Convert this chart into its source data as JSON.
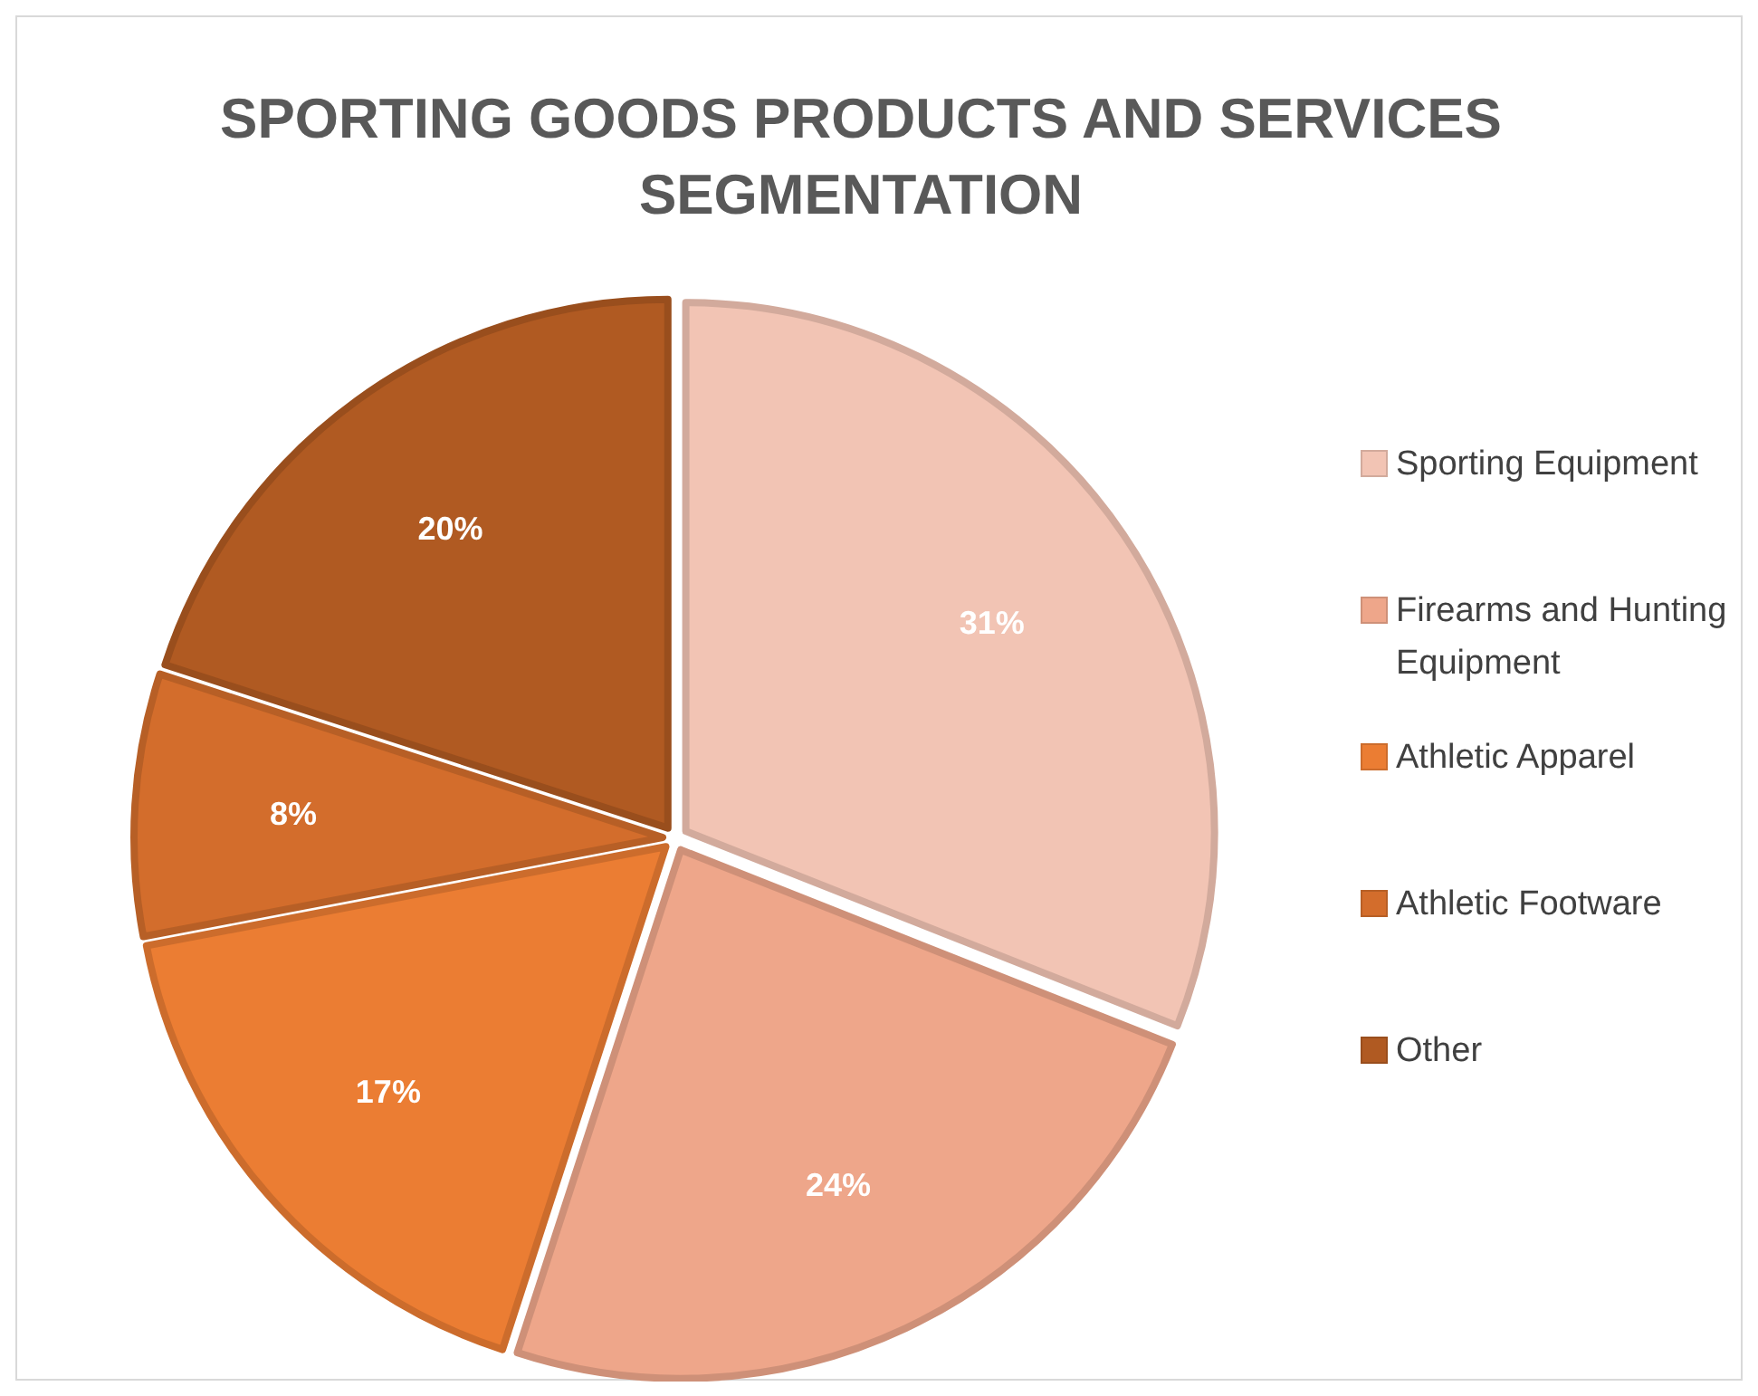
{
  "chart_data": {
    "type": "pie",
    "title": "SPORTING GOODS PRODUCTS AND SERVICES SEGMENTATION",
    "categories": [
      "Sporting Equipment",
      "Firearms and Hunting Equipment",
      "Athletic Apparel",
      "Athletic Footware",
      "Other"
    ],
    "values": [
      31,
      24,
      17,
      8,
      20
    ],
    "value_labels": [
      "31%",
      "24%",
      "17%",
      "8%",
      "20%"
    ],
    "colors": [
      "#f2c4b4",
      "#eea68a",
      "#eb7d33",
      "#d36d2c",
      "#b05a22"
    ],
    "legend": "right"
  }
}
